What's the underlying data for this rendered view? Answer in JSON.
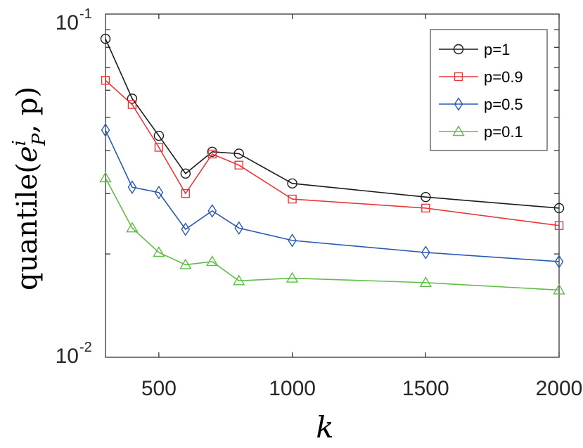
{
  "chart_data": {
    "type": "line",
    "xlabel": "k",
    "ylabel_text": "quantile(",
    "ylabel_symbol": "e",
    "ylabel_sup": "i",
    "ylabel_sub": "P",
    "ylabel_tail": ", p)",
    "yscale": "log",
    "xlim": [
      300,
      2000
    ],
    "ylim": [
      0.01,
      0.1
    ],
    "x_ticks": [
      500,
      1000,
      1500,
      2000
    ],
    "x_tick_labels": [
      "500",
      "1000",
      "1500",
      "2000"
    ],
    "y_tick_labels": [
      {
        "base": "10",
        "exp": "-1"
      },
      {
        "base": "10",
        "exp": "-2"
      }
    ],
    "legend_position": "top-right",
    "x": [
      300,
      400,
      500,
      600,
      700,
      800,
      1000,
      1500,
      2000
    ],
    "series": [
      {
        "name": "p=1",
        "color": "#1a1a1a",
        "marker": "circle",
        "values": [
          0.0847,
          0.0567,
          0.0442,
          0.0343,
          0.0397,
          0.0392,
          0.0321,
          0.0293,
          0.0272
        ]
      },
      {
        "name": "p=0.9",
        "color": "#e8383a",
        "marker": "square",
        "values": [
          0.0641,
          0.0545,
          0.0409,
          0.03,
          0.0391,
          0.0363,
          0.0289,
          0.0272,
          0.0242
        ]
      },
      {
        "name": "p=0.5",
        "color": "#2a5ab0",
        "marker": "diamond",
        "values": [
          0.0459,
          0.0313,
          0.0302,
          0.0236,
          0.0267,
          0.0238,
          0.0219,
          0.0202,
          0.019
        ]
      },
      {
        "name": "p=0.1",
        "color": "#5fbd45",
        "marker": "triangle",
        "values": [
          0.0333,
          0.0238,
          0.0202,
          0.0186,
          0.019,
          0.0167,
          0.017,
          0.0165,
          0.0157
        ]
      }
    ]
  }
}
